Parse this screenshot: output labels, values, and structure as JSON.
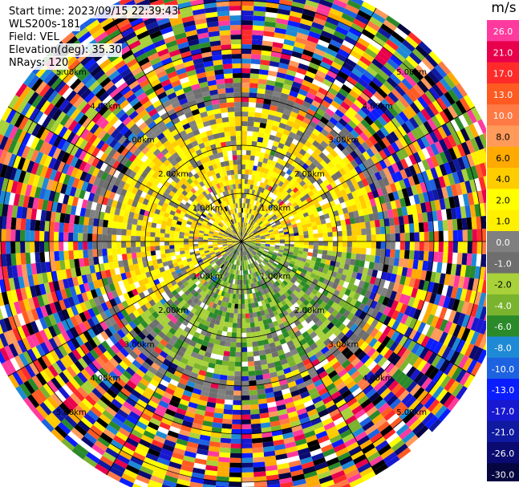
{
  "info": {
    "start_time": "Start time: 2023/09/15 22:39:43",
    "site": "WLS200s-181",
    "field": "Field: VEL",
    "elevation": "Elevation(deg): 35.30",
    "nrays": "NRays: 120"
  },
  "colorbar": {
    "unit": "m/s",
    "levels": [
      {
        "label": "26.0",
        "color": "#ff3a9e"
      },
      {
        "label": "21.0",
        "color": "#e8004c"
      },
      {
        "label": "17.0",
        "color": "#ff2a2a"
      },
      {
        "label": "13.0",
        "color": "#ff5a22"
      },
      {
        "label": "10.0",
        "color": "#ff7a45"
      },
      {
        "label": "8.0",
        "color": "#ff9a5a"
      },
      {
        "label": "6.0",
        "color": "#ffaa00"
      },
      {
        "label": "4.0",
        "color": "#ffcc00"
      },
      {
        "label": "2.0",
        "color": "#ffff00"
      },
      {
        "label": "1.0",
        "color": "#fff000"
      },
      {
        "label": "0.0",
        "color": "#808080"
      },
      {
        "label": "-1.0",
        "color": "#6e6e6e"
      },
      {
        "label": "-2.0",
        "color": "#a8d13a"
      },
      {
        "label": "-4.0",
        "color": "#7ab32e"
      },
      {
        "label": "-6.0",
        "color": "#2a8a2a"
      },
      {
        "label": "-8.0",
        "color": "#1e8ad6"
      },
      {
        "label": "-10.0",
        "color": "#1d62e0"
      },
      {
        "label": "-13.0",
        "color": "#0a1dff"
      },
      {
        "label": "-17.0",
        "color": "#1818d0"
      },
      {
        "label": "-21.0",
        "color": "#101aa0"
      },
      {
        "label": "-26.0",
        "color": "#0a0a70"
      },
      {
        "label": "-30.0",
        "color": "#050540"
      }
    ]
  },
  "chart_data": {
    "type": "ppi-velocity",
    "field": "VEL",
    "unit": "m/s",
    "nrays": 120,
    "range_rings_km": [
      1,
      2,
      3,
      4,
      5
    ],
    "range_ring_labels": [
      "1.00km",
      "2.00km",
      "3.00km",
      "4.00km",
      "5.00km"
    ],
    "range_max_km": 5.6,
    "velocity_min": -30.0,
    "velocity_max": 30.0,
    "regions": [
      {
        "from_az": 0,
        "to_az": 360,
        "from_km": 0.0,
        "to_km": 1.0,
        "dominant": "yellow/gray",
        "velocity": 1.5
      },
      {
        "from_az": 230,
        "to_az": 360,
        "from_km": 0.5,
        "to_km": 2.2,
        "dominant": "yellow",
        "velocity": 2.0
      },
      {
        "from_az": 0,
        "to_az": 90,
        "from_km": 0.5,
        "to_km": 2.5,
        "dominant": "yellow",
        "velocity": 2.0
      },
      {
        "from_az": 90,
        "to_az": 230,
        "from_km": 0.5,
        "to_km": 2.8,
        "dominant": "green",
        "velocity": -2.0
      },
      {
        "from_az": 0,
        "to_az": 360,
        "from_km": 2.8,
        "to_km": 5.6,
        "dominant": "noise",
        "velocity": null
      }
    ]
  }
}
